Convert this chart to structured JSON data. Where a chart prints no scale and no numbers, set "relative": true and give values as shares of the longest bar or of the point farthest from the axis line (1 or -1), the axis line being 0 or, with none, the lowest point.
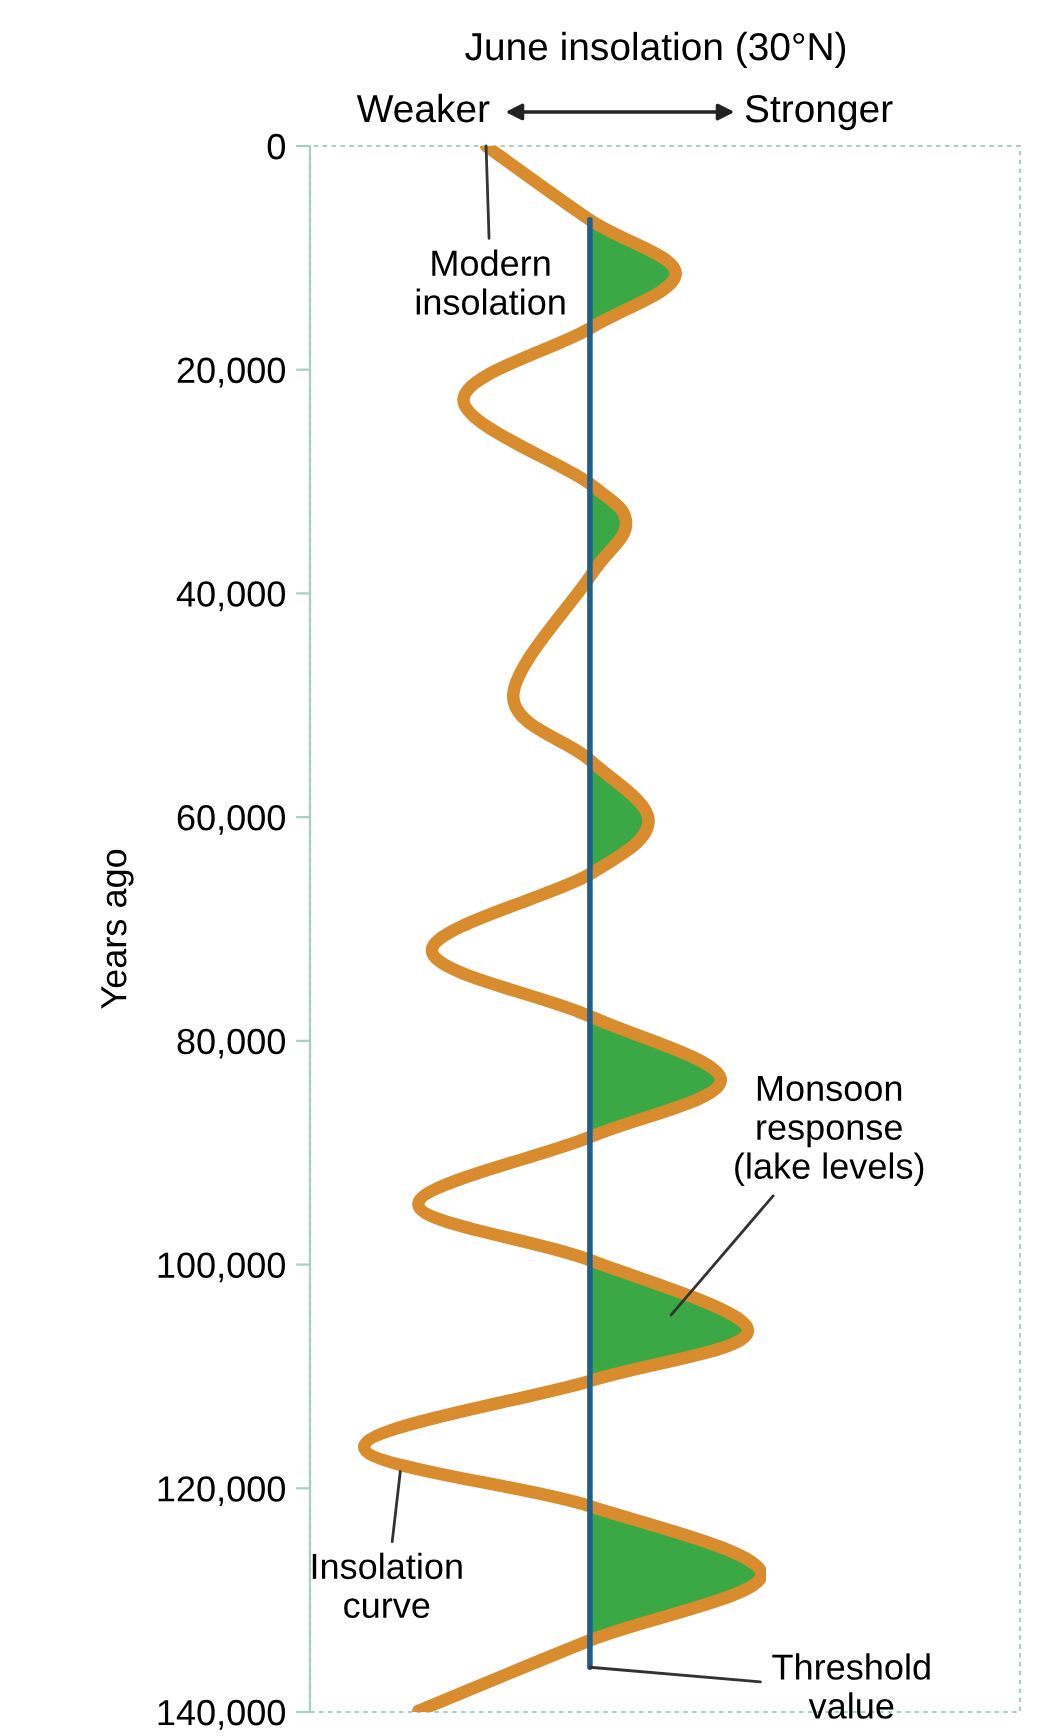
{
  "chart_data": {
    "type": "line",
    "relative": true,
    "orientation": "horizontal",
    "title": "June insolation (30°N)",
    "ylabel": "Years ago",
    "ylim": [
      140000,
      0
    ],
    "yticks": [
      0,
      {
        "value": 20000,
        "label": "20,000"
      },
      {
        "value": 40000,
        "label": "40,000"
      },
      {
        "value": 60000,
        "label": "60,000"
      },
      {
        "value": 80000,
        "label": "80,000"
      },
      {
        "value": 100000,
        "label": "100,000"
      },
      {
        "value": 120000,
        "label": "120,000"
      },
      {
        "value": 140000,
        "label": "140,000"
      }
    ],
    "grid": false,
    "legend": false,
    "marker": "none",
    "line_style": "solid",
    "series": [
      {
        "type": "area",
        "color": "#3aa845",
        "x": [
          6600,
          11400,
          16300,
          null,
          30200,
          33800,
          38500,
          null,
          54900,
          60300,
          65100,
          null,
          77800,
          83500,
          88600,
          null,
          99600,
          105900,
          110400,
          null,
          121600,
          127700,
          133600
        ],
        "values": [
          0.62,
          0.81,
          0.62,
          null,
          0.62,
          0.7,
          0.62,
          null,
          0.62,
          0.75,
          0.62,
          null,
          0.62,
          0.91,
          0.62,
          null,
          0.62,
          0.97,
          0.62,
          null,
          0.62,
          1.0,
          0.62
        ]
      },
      {
        "color": "#d98c2e",
        "x": [
          0,
          6600,
          11400,
          16300,
          22700,
          30200,
          33800,
          38500,
          49200,
          54900,
          60300,
          65100,
          71900,
          77800,
          83500,
          88600,
          94600,
          99600,
          105900,
          110400,
          116300,
          121600,
          127700,
          133600,
          139900
        ],
        "values": [
          0.39,
          0.62,
          0.81,
          0.62,
          0.34,
          0.62,
          0.7,
          0.62,
          0.45,
          0.62,
          0.75,
          0.62,
          0.27,
          0.62,
          0.91,
          0.62,
          0.24,
          0.62,
          0.97,
          0.62,
          0.12,
          0.62,
          1.0,
          0.62,
          0.24
        ]
      },
      {
        "type": "line",
        "color": "#1f5f8b",
        "x": [
          6600,
          136000
        ],
        "values": [
          0.62,
          0.62
        ]
      }
    ],
    "annotations": [
      "Weaker",
      "Stronger",
      {
        "text": "Modern\ninsolation",
        "x": 0.39,
        "y": 0
      },
      "Monsoon\nresponse\n(lake levels)",
      {
        "text": "Insolation\ncurve",
        "x": 0.2,
        "y": 118500
      },
      {
        "text": "Threshold\nvalue",
        "x": 0.62,
        "y": 136000
      }
    ]
  }
}
